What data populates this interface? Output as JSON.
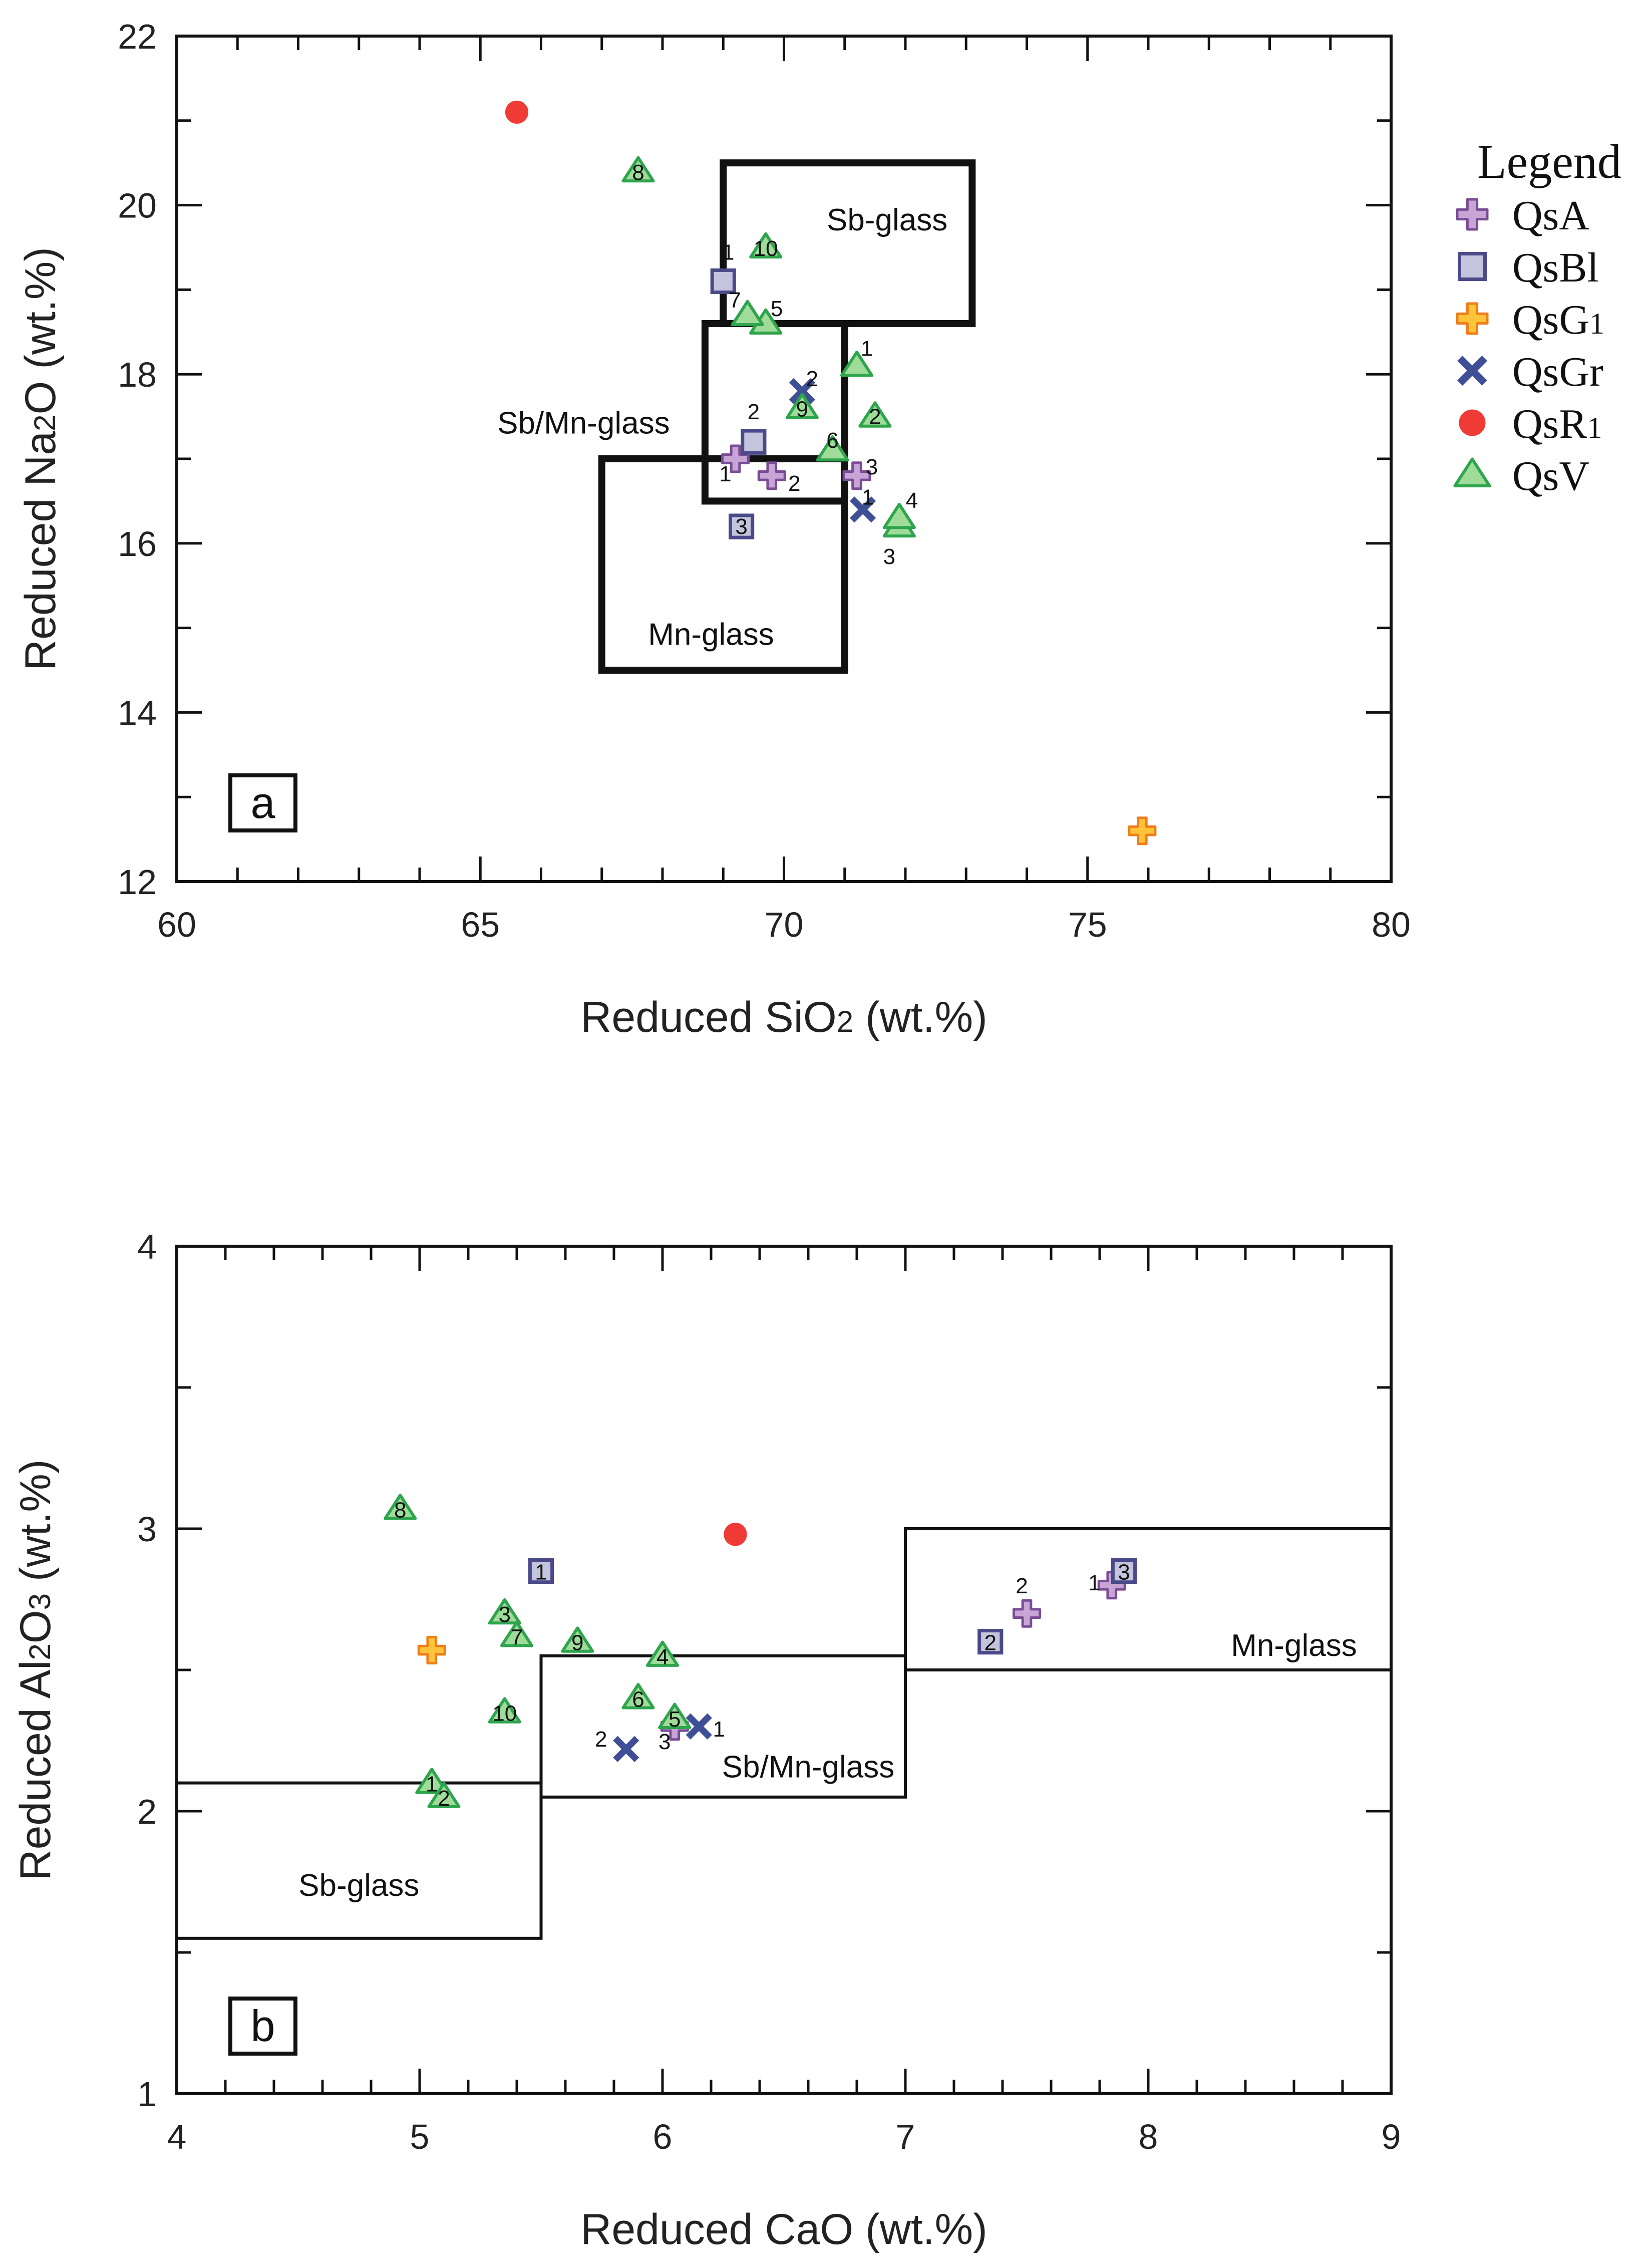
{
  "legend": {
    "title": "Legend",
    "entries": [
      {
        "key": "QsA",
        "label": "QsA",
        "marker": "plus",
        "fill": "#c7a6d6",
        "stroke": "#7b4c96"
      },
      {
        "key": "QsBl",
        "label": "QsBl",
        "marker": "square",
        "fill": "#c4c4dc",
        "stroke": "#4a4a8a"
      },
      {
        "key": "QsG1",
        "label": "QsG1",
        "marker": "plus",
        "fill": "#ffc43a",
        "stroke": "#ef7d1a"
      },
      {
        "key": "QsGr",
        "label": "QsGr",
        "marker": "x",
        "fill": "#3f4f96",
        "stroke": "#3f4f96"
      },
      {
        "key": "QsR1",
        "label": "QsR1",
        "marker": "circle",
        "fill": "#ef3a36",
        "stroke": "#ef3a36"
      },
      {
        "key": "QsV",
        "label": "QsV",
        "marker": "triangle",
        "fill": "#9fdc9a",
        "stroke": "#2ea54c"
      }
    ]
  },
  "chart_data": [
    {
      "type": "scatter",
      "panel_label": "a",
      "xlabel": "Reduced SiO2 (wt.%)",
      "ylabel": "Reduced Na2O (wt.%)",
      "xlim": [
        60,
        80
      ],
      "ylim": [
        12,
        22
      ],
      "xticks": [
        60,
        65,
        70,
        75,
        80
      ],
      "yticks": [
        12,
        14,
        16,
        18,
        20,
        22
      ],
      "regions": [
        {
          "label": "Sb-glass",
          "x": [
            69.0,
            73.1
          ],
          "y": [
            18.6,
            20.5
          ],
          "label_at": [
            71.7,
            19.7
          ]
        },
        {
          "label": "Sb/Mn-glass",
          "x": [
            68.7,
            71.0
          ],
          "y": [
            16.5,
            18.6
          ],
          "label_at": [
            66.7,
            17.3
          ]
        },
        {
          "label": "Mn-glass",
          "x": [
            67.0,
            71.0
          ],
          "y": [
            14.5,
            17.0
          ],
          "label_at": [
            68.8,
            14.8
          ]
        }
      ],
      "series": [
        {
          "name": "QsA",
          "points": [
            {
              "x": 69.2,
              "y": 17.0,
              "label": "1"
            },
            {
              "x": 69.8,
              "y": 16.8,
              "label": "2"
            },
            {
              "x": 71.2,
              "y": 16.8,
              "label": "3"
            }
          ]
        },
        {
          "name": "QsBl",
          "points": [
            {
              "x": 69.0,
              "y": 19.1,
              "label": "1"
            },
            {
              "x": 69.5,
              "y": 17.2,
              "label": "2"
            },
            {
              "x": 69.3,
              "y": 16.2,
              "label": "3"
            }
          ]
        },
        {
          "name": "QsG1",
          "points": [
            {
              "x": 75.9,
              "y": 12.6,
              "label": ""
            }
          ]
        },
        {
          "name": "QsGr",
          "points": [
            {
              "x": 70.3,
              "y": 17.8,
              "label": "2"
            },
            {
              "x": 71.3,
              "y": 16.4,
              "label": "1"
            }
          ]
        },
        {
          "name": "QsR1",
          "points": [
            {
              "x": 65.6,
              "y": 21.1,
              "label": ""
            }
          ]
        },
        {
          "name": "QsV",
          "points": [
            {
              "x": 71.2,
              "y": 18.1,
              "label": "1"
            },
            {
              "x": 71.5,
              "y": 17.5,
              "label": "2"
            },
            {
              "x": 71.9,
              "y": 16.2,
              "label": "3"
            },
            {
              "x": 71.9,
              "y": 16.3,
              "label": "4"
            },
            {
              "x": 69.7,
              "y": 18.6,
              "label": "5"
            },
            {
              "x": 70.8,
              "y": 17.1,
              "label": "6"
            },
            {
              "x": 69.4,
              "y": 18.7,
              "label": "7"
            },
            {
              "x": 67.6,
              "y": 20.4,
              "label": "8"
            },
            {
              "x": 70.3,
              "y": 17.6,
              "label": "9"
            },
            {
              "x": 69.7,
              "y": 19.5,
              "label": "10"
            }
          ]
        }
      ]
    },
    {
      "type": "scatter",
      "panel_label": "b",
      "xlabel": "Reduced CaO (wt.%)",
      "ylabel": "Reduced Al2O3 (wt.%)",
      "xlim": [
        4,
        9
      ],
      "ylim": [
        1,
        4
      ],
      "xticks": [
        4,
        5,
        6,
        7,
        8,
        9
      ],
      "yticks": [
        1,
        2,
        3,
        4
      ],
      "regions": [
        {
          "label": "Sb-glass",
          "x": [
            4.0,
            5.5
          ],
          "y": [
            1.55,
            2.1
          ],
          "label_at": [
            4.75,
            1.7
          ]
        },
        {
          "label": "Sb/Mn-glass",
          "x": [
            5.5,
            7.0
          ],
          "y": [
            2.05,
            2.55
          ],
          "label_at": [
            6.6,
            2.12
          ]
        },
        {
          "label": "Mn-glass",
          "x": [
            7.0,
            9.0
          ],
          "y": [
            2.5,
            3.0
          ],
          "label_at": [
            8.6,
            2.55
          ]
        }
      ],
      "series": [
        {
          "name": "QsA",
          "points": [
            {
              "x": 7.85,
              "y": 2.8,
              "label": "1"
            },
            {
              "x": 7.5,
              "y": 2.7,
              "label": "2"
            },
            {
              "x": 6.05,
              "y": 2.3,
              "label": "3"
            }
          ]
        },
        {
          "name": "QsBl",
          "points": [
            {
              "x": 5.5,
              "y": 2.85,
              "label": "1"
            },
            {
              "x": 7.35,
              "y": 2.6,
              "label": "2"
            },
            {
              "x": 7.9,
              "y": 2.85,
              "label": "3"
            }
          ]
        },
        {
          "name": "QsG1",
          "points": [
            {
              "x": 5.05,
              "y": 2.57,
              "label": ""
            }
          ]
        },
        {
          "name": "QsGr",
          "points": [
            {
              "x": 6.15,
              "y": 2.3,
              "label": "1"
            },
            {
              "x": 5.85,
              "y": 2.22,
              "label": "2"
            }
          ]
        },
        {
          "name": "QsR1",
          "points": [
            {
              "x": 6.3,
              "y": 2.98,
              "label": ""
            }
          ]
        },
        {
          "name": "QsV",
          "points": [
            {
              "x": 5.05,
              "y": 2.1,
              "label": "1"
            },
            {
              "x": 5.1,
              "y": 2.05,
              "label": "2"
            },
            {
              "x": 5.35,
              "y": 2.7,
              "label": "3"
            },
            {
              "x": 6.0,
              "y": 2.55,
              "label": "4"
            },
            {
              "x": 6.05,
              "y": 2.33,
              "label": "5"
            },
            {
              "x": 5.9,
              "y": 2.4,
              "label": "6"
            },
            {
              "x": 5.4,
              "y": 2.62,
              "label": "7"
            },
            {
              "x": 4.92,
              "y": 3.07,
              "label": "8"
            },
            {
              "x": 5.65,
              "y": 2.6,
              "label": "9"
            },
            {
              "x": 5.35,
              "y": 2.35,
              "label": "10"
            }
          ]
        }
      ]
    }
  ]
}
